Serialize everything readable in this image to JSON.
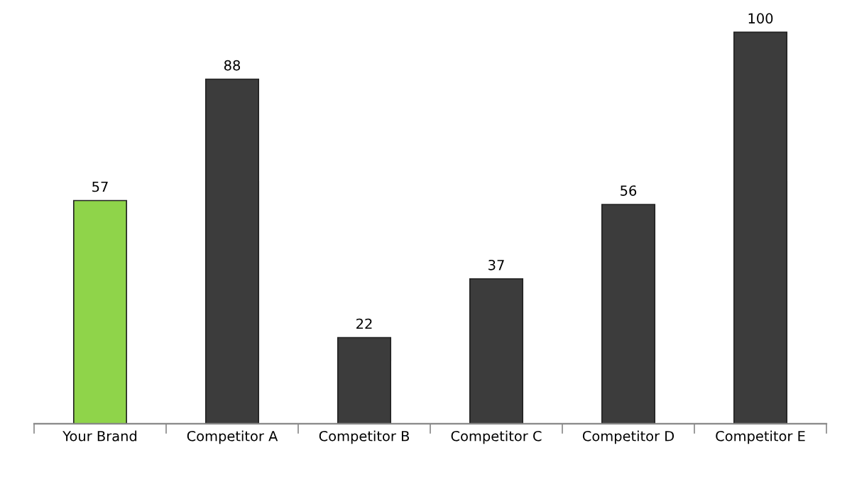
{
  "chart_data": {
    "type": "bar",
    "categories": [
      "Your Brand",
      "Competitor A",
      "Competitor B",
      "Competitor C",
      "Competitor D",
      "Competitor E"
    ],
    "values": [
      57,
      88,
      22,
      37,
      56,
      100
    ],
    "colors": [
      "#8fd44a",
      "#3c3c3c",
      "#3c3c3c",
      "#3c3c3c",
      "#3c3c3c",
      "#3c3c3c"
    ],
    "data_labels": true,
    "grid": false,
    "legend": false
  }
}
